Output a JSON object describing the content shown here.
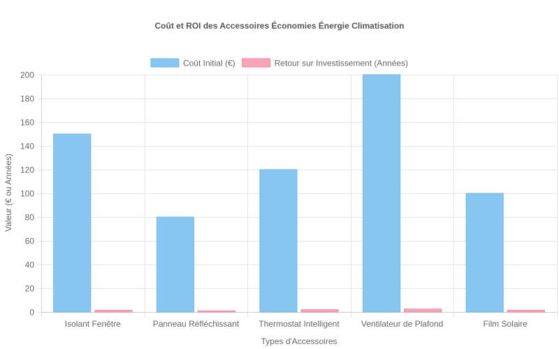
{
  "chart_data": {
    "type": "bar",
    "title": "Coût et ROI des Accessoires Économies Énergie Climatisation",
    "xlabel": "Types d'Accessoires",
    "ylabel": "Valeur (€ ou Années)",
    "categories": [
      "Isolant Fenêtre",
      "Panneau Réfléchissant",
      "Thermostat Intelligent",
      "Ventilateur de Plafond",
      "Film Solaire"
    ],
    "series": [
      {
        "name": "Coût Initial (€)",
        "values": [
          150,
          80,
          120,
          200,
          100
        ],
        "color": "#87c6f0",
        "border": "#72b8e8"
      },
      {
        "name": "Retour sur Investissement (Années)",
        "values": [
          1.5,
          1,
          2,
          2.5,
          1.5
        ],
        "color": "#f6a4b6",
        "border": "#ee8aa2"
      }
    ],
    "ylim": [
      0,
      200
    ],
    "yticks": [
      0,
      20,
      40,
      60,
      80,
      100,
      120,
      140,
      160,
      180,
      200
    ],
    "grid": true,
    "legend_position": "top"
  }
}
